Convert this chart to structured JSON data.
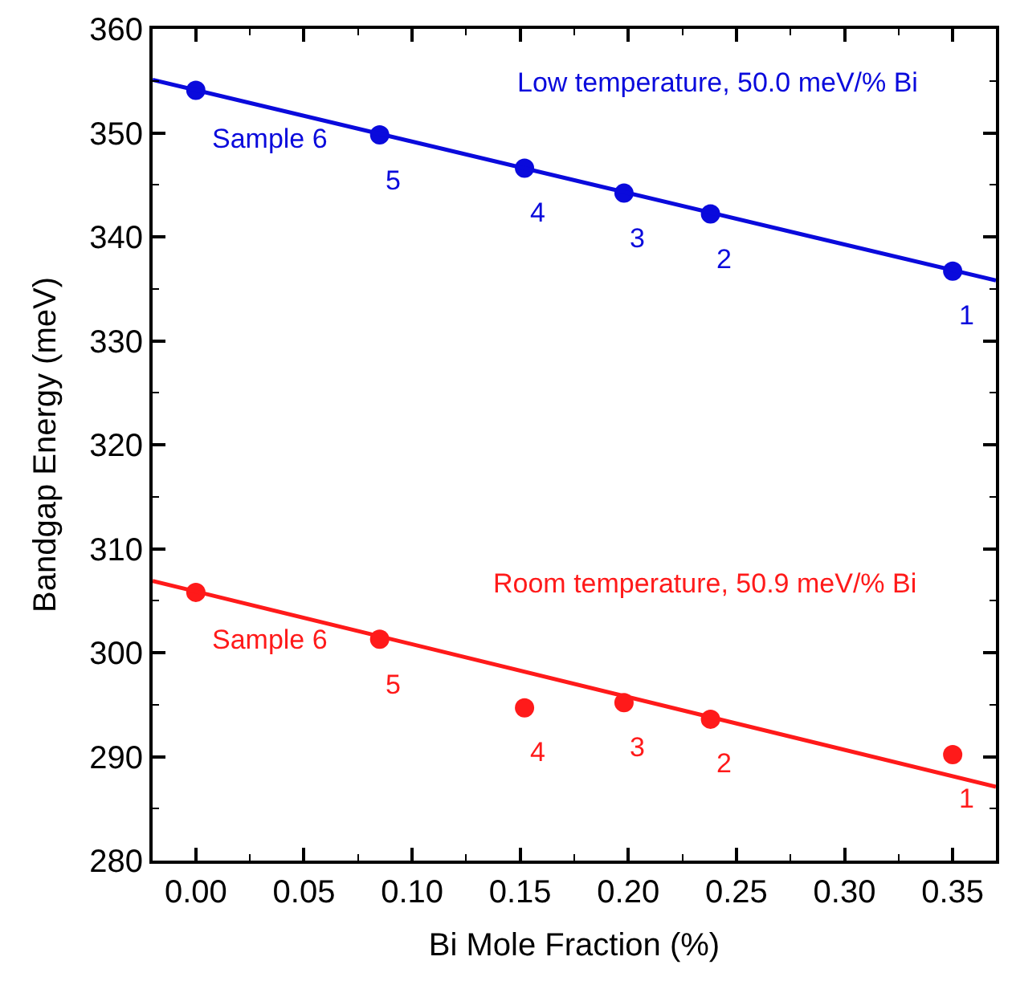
{
  "chart_data": {
    "type": "scatter",
    "xlabel": "Bi Mole Fraction (%)",
    "ylabel": "Bandgap Energy (meV)",
    "xlim": [
      -0.02,
      0.37
    ],
    "ylim": [
      280,
      360
    ],
    "xticks": [
      {
        "value": 0,
        "label": "0.00"
      },
      {
        "value": 0.05,
        "label": "0.05"
      },
      {
        "value": 0.1,
        "label": "0.10"
      },
      {
        "value": 0.15,
        "label": "0.15"
      },
      {
        "value": 0.2,
        "label": "0.20"
      },
      {
        "value": 0.25,
        "label": "0.25"
      },
      {
        "value": 0.3,
        "label": "0.30"
      },
      {
        "value": 0.35,
        "label": "0.35"
      }
    ],
    "yticks": [
      280,
      290,
      300,
      310,
      320,
      330,
      340,
      350,
      360
    ],
    "marker": "circle",
    "series": [
      {
        "color": "#0a0adc",
        "x": [
          0.0,
          0.085,
          0.152,
          0.198,
          0.238,
          0.35
        ],
        "values": [
          354.1,
          349.8,
          346.6,
          344.2,
          342.2,
          336.7
        ]
      },
      {
        "type": "line",
        "marker": "none",
        "color": "#0a0adc",
        "x": [
          -0.02,
          0.37
        ],
        "values": [
          355.1,
          335.8
        ]
      },
      {
        "color": "#ff1a1a",
        "x": [
          0.0,
          0.085,
          0.152,
          0.198,
          0.238,
          0.35
        ],
        "values": [
          305.8,
          301.3,
          294.7,
          295.2,
          293.6,
          290.2
        ]
      },
      {
        "type": "line",
        "marker": "none",
        "color": "#ff1a1a",
        "x": [
          -0.02,
          0.37
        ],
        "values": [
          306.9,
          287.1
        ]
      }
    ],
    "annotations": [
      "Low temperature, 50.0 meV/% Bi",
      {
        "text": "Sample 6",
        "x": 0.0,
        "y": 354.1
      },
      {
        "text": "5",
        "x": 0.085,
        "y": 349.8
      },
      {
        "text": "4",
        "x": 0.152,
        "y": 346.6
      },
      {
        "text": "3",
        "x": 0.198,
        "y": 344.2
      },
      {
        "text": "2",
        "x": 0.238,
        "y": 342.2
      },
      {
        "text": "1",
        "x": 0.35,
        "y": 336.7
      },
      "Room temperature, 50.9 meV/% Bi",
      {
        "text": "Sample 6",
        "x": 0.0,
        "y": 305.8
      },
      {
        "text": "5",
        "x": 0.085,
        "y": 301.3
      },
      {
        "text": "4",
        "x": 0.152,
        "y": 294.7
      },
      {
        "text": "3",
        "x": 0.198,
        "y": 295.2
      },
      {
        "text": "2",
        "x": 0.238,
        "y": 293.6
      },
      {
        "text": "1",
        "x": 0.35,
        "y": 290.2
      }
    ]
  }
}
